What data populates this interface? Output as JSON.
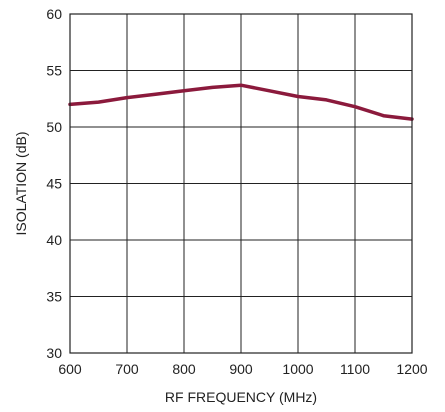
{
  "chart_data": {
    "type": "line",
    "title": "",
    "xlabel": "RF FREQUENCY (MHz)",
    "ylabel": "ISOLATION (dB)",
    "xlim": [
      600,
      1200
    ],
    "ylim": [
      30,
      60
    ],
    "x_ticks": [
      600,
      700,
      800,
      900,
      1000,
      1100,
      1200
    ],
    "y_ticks": [
      30,
      35,
      40,
      45,
      50,
      55,
      60
    ],
    "grid": true,
    "series": [
      {
        "color": "#8b1a3c",
        "x": [
          600,
          650,
          700,
          750,
          800,
          850,
          900,
          950,
          1000,
          1050,
          1100,
          1150,
          1200
        ],
        "y": [
          52.0,
          52.2,
          52.6,
          52.9,
          53.2,
          53.5,
          53.7,
          53.2,
          52.7,
          52.4,
          51.8,
          51.0,
          50.7
        ]
      }
    ]
  }
}
